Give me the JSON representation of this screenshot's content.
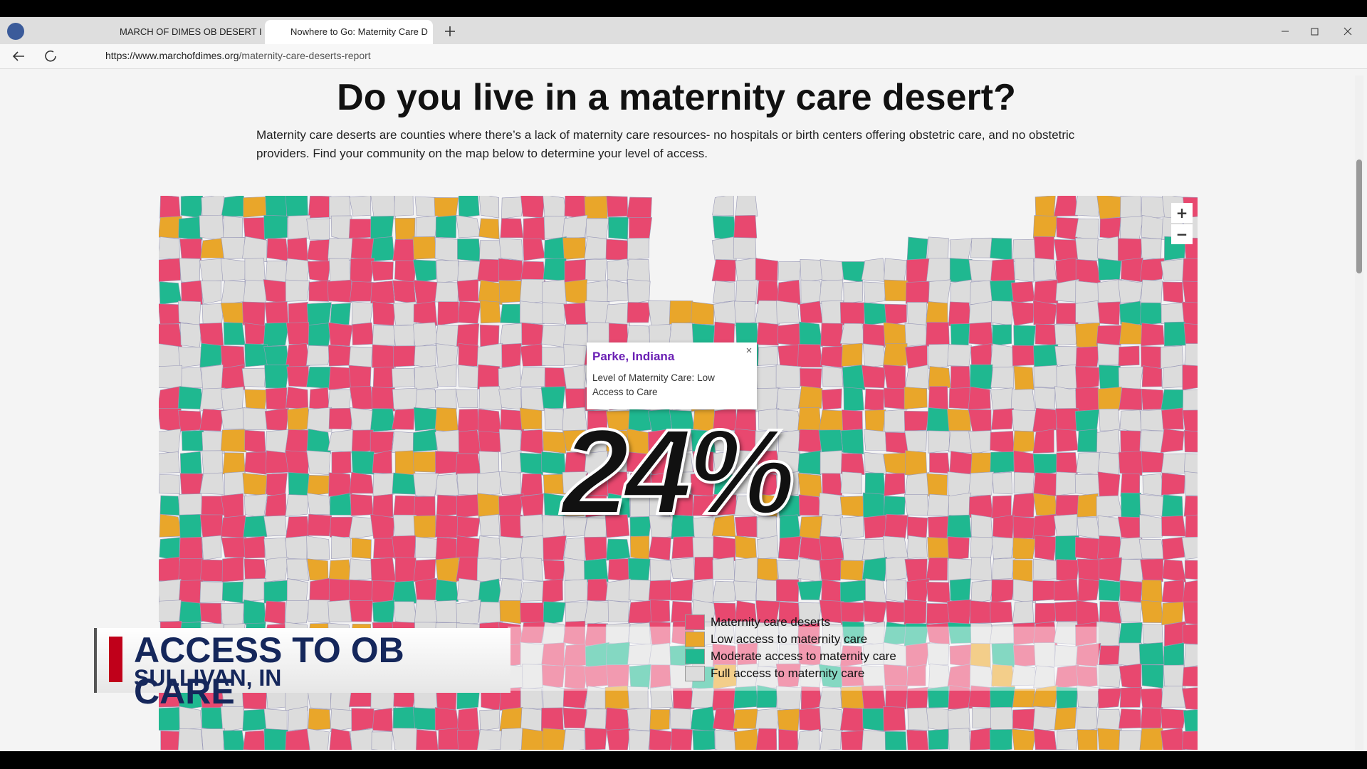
{
  "browser": {
    "tabs": [
      {
        "title": "MARCH OF DIMES OB DESERT IN"
      },
      {
        "title": "Nowhere to Go: Maternity Care D"
      }
    ],
    "url_host": "https://www.marchofdimes.org",
    "url_path": "/maternity-care-deserts-report"
  },
  "page": {
    "heading": "Do you live in a maternity care desert?",
    "intro": "Maternity care deserts are counties where there’s a lack of maternity care resources- no hospitals or birth centers offering obstetric care, and no obstetric providers. Find your community on the map below to determine your level of access."
  },
  "map": {
    "zoom_in": "+",
    "zoom_out": "−",
    "popup": {
      "title": "Parke, Indiana",
      "text": "Level of Maternity Care: Low Access to Care"
    },
    "legend": [
      {
        "label": "Maternity care deserts"
      },
      {
        "label": "Low access to maternity care"
      },
      {
        "label": "Moderate access to maternity care"
      },
      {
        "label": "Full access to maternity care"
      }
    ]
  },
  "overlay": {
    "big_number": "24%",
    "headline": "ACCESS TO OB CARE",
    "location": "SULLIVAN, IN"
  }
}
